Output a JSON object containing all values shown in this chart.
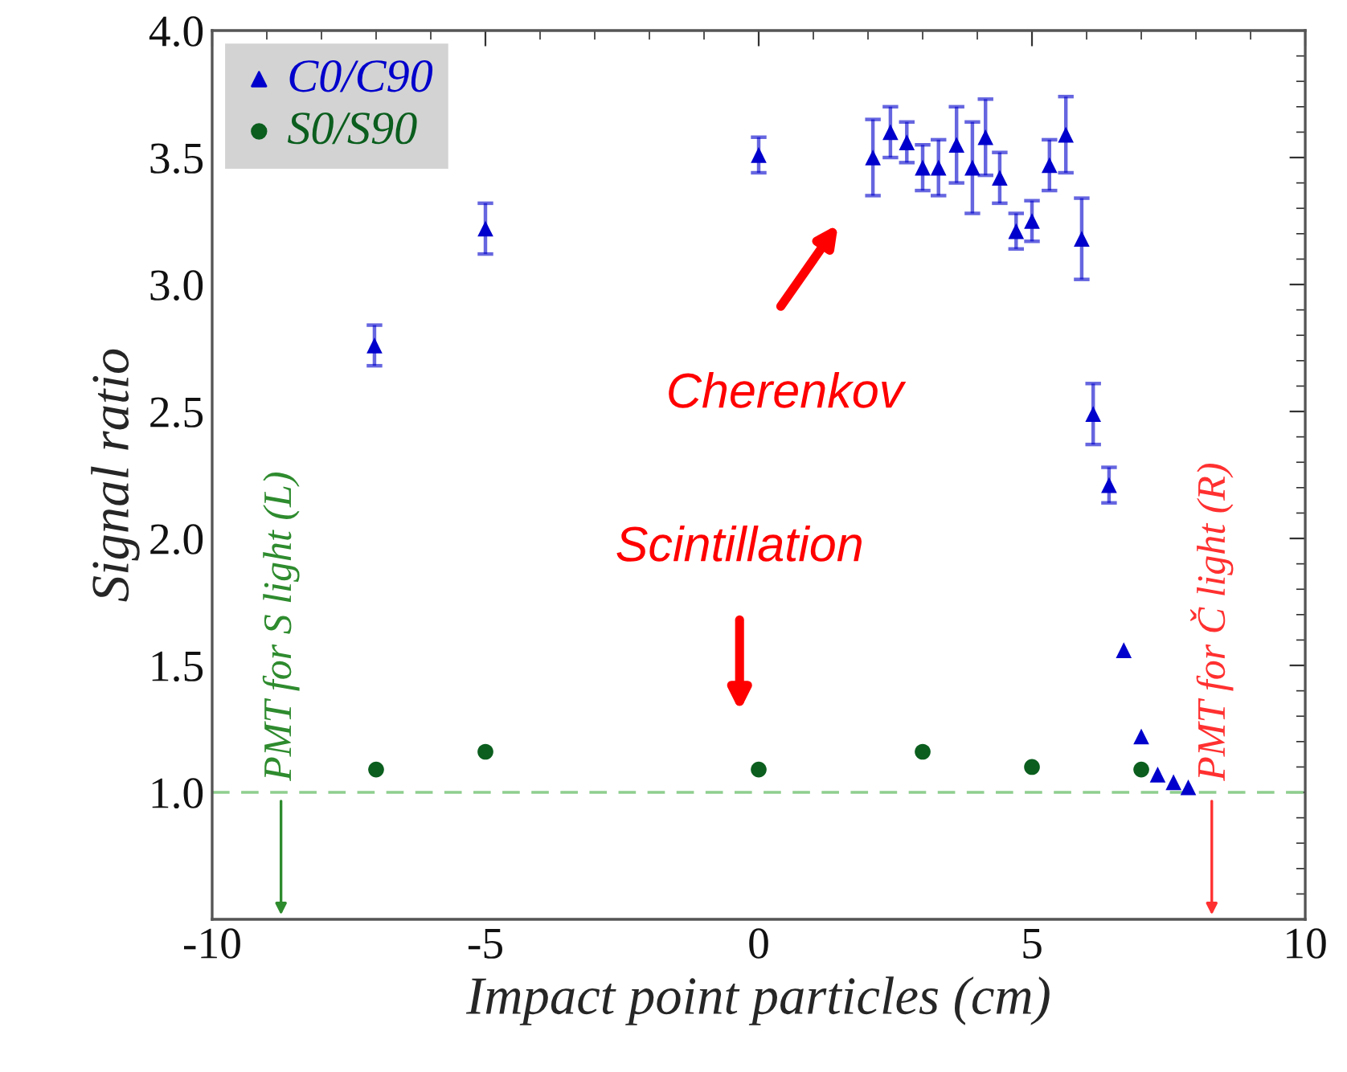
{
  "chart_data": {
    "type": "scatter",
    "xlabel": "Impact point particles (cm)",
    "ylabel": "Signal ratio",
    "xlim": [
      -10,
      10
    ],
    "xticks": [
      -10,
      -5,
      0,
      5,
      10
    ],
    "ylim": [
      0.5,
      4.0
    ],
    "yticks": [
      {
        "value": 1.0,
        "label": "1.0"
      },
      {
        "value": 1.5,
        "label": "1.5"
      },
      {
        "value": 2.0,
        "label": "2.0"
      },
      {
        "value": 2.5,
        "label": "2.5"
      },
      {
        "value": 3.0,
        "label": "3.0"
      },
      {
        "value": 3.5,
        "label": "3.5"
      },
      {
        "value": 4.0,
        "label": "4.0"
      }
    ],
    "legend": "top left",
    "grid": false,
    "series": [
      {
        "name": "C0/C90",
        "color": "#0000cc",
        "marker": "triangle",
        "x": [
          -7.03,
          -5,
          0,
          2.09,
          2.41,
          2.71,
          3.0,
          3.29,
          3.62,
          3.91,
          4.15,
          4.41,
          4.71,
          5.0,
          5.32,
          5.62,
          5.91,
          6.12,
          6.41,
          6.68,
          7.0,
          7.3,
          7.59,
          7.86
        ],
        "values": [
          2.76,
          3.22,
          3.51,
          3.5,
          3.6,
          3.56,
          3.46,
          3.46,
          3.55,
          3.46,
          3.58,
          3.42,
          3.21,
          3.25,
          3.47,
          3.59,
          3.18,
          2.49,
          2.21,
          1.56,
          1.22,
          1.07,
          1.04,
          1.02
        ],
        "errors": [
          0.08,
          0.1,
          0.07,
          0.15,
          0.1,
          0.08,
          0.09,
          0.11,
          0.15,
          0.18,
          0.15,
          0.1,
          0.07,
          0.08,
          0.1,
          0.15,
          0.16,
          0.12,
          0.07,
          null,
          null,
          null,
          null,
          null
        ]
      },
      {
        "name": "S0/S90",
        "color": "#0b5e1e",
        "marker": "circle",
        "x": [
          -7,
          -5,
          0,
          3,
          5,
          7
        ],
        "values": [
          1.09,
          1.16,
          1.09,
          1.16,
          1.1,
          1.09
        ]
      }
    ],
    "ref_lines": [
      {
        "axis": "y",
        "value": 1.0,
        "color": "#8fce8f",
        "line_style": "dashed"
      }
    ],
    "annotations": [
      "Cherenkov",
      "Scintillation",
      "PMT for S light (L)",
      "PMT for Č light (R)"
    ]
  }
}
